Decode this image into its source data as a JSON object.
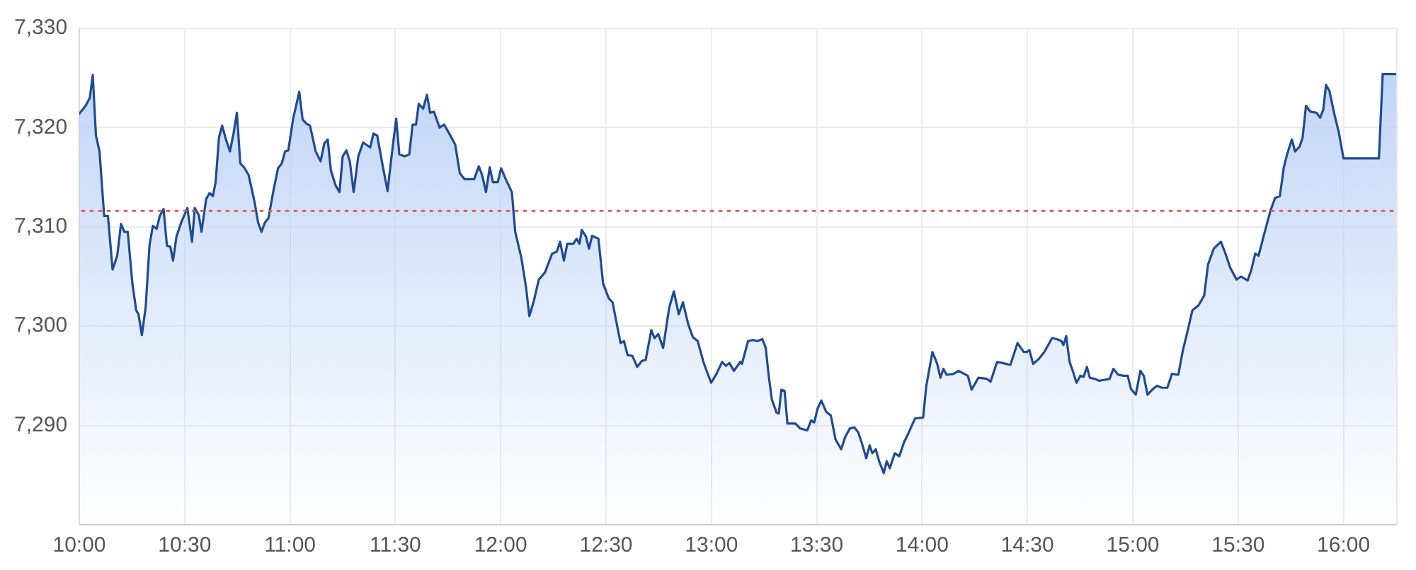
{
  "chart_data": {
    "type": "area",
    "color": "#1f4b93",
    "xlim": [
      10,
      16.25
    ],
    "xticks": [
      {
        "value": 10,
        "label": "10:00"
      },
      {
        "value": 10.5,
        "label": "10:30"
      },
      {
        "value": 11,
        "label": "11:00"
      },
      {
        "value": 11.5,
        "label": "11:30"
      },
      {
        "value": 12,
        "label": "12:00"
      },
      {
        "value": 12.5,
        "label": "12:30"
      },
      {
        "value": 13,
        "label": "13:00"
      },
      {
        "value": 13.5,
        "label": "13:30"
      },
      {
        "value": 14,
        "label": "14:00"
      },
      {
        "value": 14.5,
        "label": "14:30"
      },
      {
        "value": 15,
        "label": "15:00"
      },
      {
        "value": 15.5,
        "label": "15:30"
      },
      {
        "value": 16,
        "label": "16:00"
      }
    ],
    "ylim": [
      7280,
      7330
    ],
    "yticks": [
      {
        "value": 7290,
        "label": "7,290"
      },
      {
        "value": 7300,
        "label": "7,300"
      },
      {
        "value": 7310,
        "label": "7,310"
      },
      {
        "value": 7320,
        "label": "7,320"
      },
      {
        "value": 7330,
        "label": "7,330"
      }
    ],
    "grid": true,
    "ref_lines": [
      {
        "axis": "y",
        "value": 7311.6,
        "color": "#e05a5a",
        "line_style": "dotted"
      }
    ],
    "x": [
      10.0,
      10.03,
      10.05,
      10.064,
      10.079,
      10.096,
      10.118,
      10.136,
      10.158,
      10.18,
      10.198,
      10.214,
      10.23,
      10.252,
      10.27,
      10.281,
      10.297,
      10.315,
      10.333,
      10.349,
      10.367,
      10.382,
      10.4,
      10.416,
      10.432,
      10.445,
      10.461,
      10.483,
      10.513,
      10.535,
      10.548,
      10.567,
      10.58,
      10.602,
      10.618,
      10.634,
      10.647,
      10.663,
      10.678,
      10.696,
      10.715,
      10.732,
      10.748,
      10.764,
      10.782,
      10.804,
      10.831,
      10.849,
      10.865,
      10.88,
      10.898,
      10.92,
      10.943,
      10.961,
      10.977,
      10.992,
      11.015,
      11.044,
      11.06,
      11.078,
      11.095,
      11.122,
      11.145,
      11.163,
      11.179,
      11.194,
      11.216,
      11.235,
      11.25,
      11.268,
      11.284,
      11.302,
      11.324,
      11.347,
      11.381,
      11.396,
      11.414,
      11.436,
      11.463,
      11.482,
      11.504,
      11.519,
      11.544,
      11.566,
      11.582,
      11.598,
      11.611,
      11.632,
      11.65,
      11.665,
      11.683,
      11.71,
      11.732,
      11.761,
      11.784,
      11.806,
      11.829,
      11.874,
      11.896,
      11.912,
      11.93,
      11.948,
      11.963,
      11.986,
      12.002,
      12.024,
      12.053,
      12.069,
      12.098,
      12.121,
      12.136,
      12.158,
      12.181,
      12.21,
      12.244,
      12.266,
      12.282,
      12.3,
      12.316,
      12.345,
      12.36,
      12.374,
      12.385,
      12.405,
      12.419,
      12.434,
      12.464,
      12.486,
      12.513,
      12.531,
      12.553,
      12.569,
      12.585,
      12.602,
      12.625,
      12.648,
      12.67,
      12.688,
      12.715,
      12.73,
      12.748,
      12.771,
      12.8,
      12.822,
      12.845,
      12.865,
      12.89,
      12.912,
      12.935,
      12.962,
      12.979,
      12.999,
      13.024,
      13.051,
      13.069,
      13.085,
      13.107,
      13.137,
      13.145,
      13.174,
      13.197,
      13.219,
      13.242,
      13.258,
      13.271,
      13.287,
      13.309,
      13.32,
      13.332,
      13.347,
      13.361,
      13.399,
      13.421,
      13.455,
      13.473,
      13.488,
      13.504,
      13.522,
      13.544,
      13.567,
      13.589,
      13.616,
      13.634,
      13.657,
      13.679,
      13.697,
      13.713,
      13.735,
      13.751,
      13.764,
      13.78,
      13.796,
      13.818,
      13.832,
      13.847,
      13.87,
      13.892,
      13.914,
      13.937,
      13.966,
      14.005,
      14.02,
      14.049,
      14.072,
      14.087,
      14.101,
      14.116,
      14.15,
      14.173,
      14.217,
      14.235,
      14.267,
      14.307,
      14.325,
      14.356,
      14.379,
      14.419,
      14.453,
      14.482,
      14.498,
      14.509,
      14.527,
      14.554,
      14.58,
      14.617,
      14.639,
      14.661,
      14.671,
      14.684,
      14.7,
      14.715,
      14.733,
      14.751,
      14.767,
      14.782,
      14.796,
      14.819,
      14.841,
      14.868,
      14.89,
      14.908,
      14.931,
      14.957,
      14.976,
      14.991,
      15.014,
      15.036,
      15.052,
      15.07,
      15.092,
      15.115,
      15.137,
      15.164,
      15.186,
      15.216,
      15.238,
      15.26,
      15.283,
      15.312,
      15.339,
      15.357,
      15.384,
      15.418,
      15.44,
      15.462,
      15.492,
      15.514,
      15.545,
      15.563,
      15.581,
      15.597,
      15.62,
      15.653,
      15.675,
      15.698,
      15.716,
      15.732,
      15.755,
      15.77,
      15.792,
      15.806,
      15.822,
      15.843,
      15.872,
      15.889,
      15.904,
      15.917,
      15.933,
      15.956,
      15.978,
      16.0,
      16.168,
      16.186,
      16.25
    ],
    "values": [
      7321.4,
      7322.2,
      7323.0,
      7325.3,
      7319.2,
      7317.6,
      7311.1,
      7311.1,
      7305.7,
      7307.1,
      7310.3,
      7309.5,
      7309.5,
      7304.3,
      7301.6,
      7301.2,
      7299.1,
      7301.9,
      7308.1,
      7310.1,
      7309.8,
      7311.1,
      7311.8,
      7308.1,
      7308.0,
      7306.6,
      7309.0,
      7310.4,
      7311.9,
      7308.5,
      7311.9,
      7311.2,
      7309.5,
      7312.8,
      7313.4,
      7313.1,
      7314.5,
      7319.0,
      7320.2,
      7318.8,
      7317.6,
      7319.4,
      7321.5,
      7316.4,
      7316.0,
      7315.2,
      7312.6,
      7310.4,
      7309.5,
      7310.4,
      7310.9,
      7313.5,
      7315.9,
      7316.4,
      7317.6,
      7317.7,
      7320.9,
      7323.6,
      7320.8,
      7320.4,
      7320.2,
      7317.6,
      7316.6,
      7318.4,
      7318.8,
      7315.7,
      7314.2,
      7313.5,
      7317.1,
      7317.7,
      7316.6,
      7313.5,
      7317.1,
      7318.5,
      7318.0,
      7319.4,
      7319.2,
      7316.6,
      7313.6,
      7317.1,
      7320.9,
      7317.3,
      7317.1,
      7317.3,
      7320.3,
      7320.3,
      7322.4,
      7321.9,
      7323.3,
      7321.5,
      7321.6,
      7320.0,
      7320.3,
      7319.2,
      7318.3,
      7315.4,
      7314.8,
      7314.8,
      7316.1,
      7315.2,
      7313.5,
      7316.0,
      7314.5,
      7314.5,
      7315.9,
      7314.8,
      7313.5,
      7309.5,
      7306.9,
      7303.8,
      7301.0,
      7302.6,
      7304.7,
      7305.4,
      7307.3,
      7307.5,
      7308.5,
      7306.6,
      7308.3,
      7308.3,
      7308.8,
      7308.3,
      7309.7,
      7309.0,
      7307.8,
      7309.1,
      7308.8,
      7304.3,
      7302.8,
      7302.4,
      7300.0,
      7298.3,
      7298.5,
      7297.1,
      7297.0,
      7295.9,
      7296.5,
      7296.6,
      7299.6,
      7298.8,
      7299.2,
      7297.8,
      7301.9,
      7303.5,
      7301.2,
      7302.4,
      7300.2,
      7298.9,
      7298.5,
      7296.4,
      7295.4,
      7294.3,
      7295.2,
      7296.4,
      7296.0,
      7296.3,
      7295.5,
      7296.4,
      7296.2,
      7298.5,
      7298.6,
      7298.5,
      7298.7,
      7297.8,
      7295.2,
      7292.6,
      7291.3,
      7291.2,
      7293.6,
      7293.5,
      7290.2,
      7290.2,
      7289.7,
      7289.5,
      7290.5,
      7290.3,
      7291.7,
      7292.5,
      7291.4,
      7291.0,
      7288.6,
      7287.6,
      7288.8,
      7289.7,
      7289.8,
      7289.3,
      7288.3,
      7286.7,
      7288.0,
      7287.2,
      7287.6,
      7286.4,
      7285.2,
      7286.4,
      7285.7,
      7287.2,
      7286.9,
      7288.3,
      7289.3,
      7290.7,
      7290.8,
      7294.0,
      7297.4,
      7296.2,
      7294.8,
      7295.7,
      7295.1,
      7295.2,
      7295.5,
      7295.0,
      7293.6,
      7294.8,
      7294.7,
      7294.4,
      7296.4,
      7296.3,
      7296.1,
      7298.3,
      7297.4,
      7297.4,
      7297.6,
      7296.2,
      7296.7,
      7297.4,
      7298.8,
      7298.7,
      7298.5,
      7298.1,
      7299.0,
      7296.4,
      7295.5,
      7294.3,
      7295.0,
      7294.9,
      7295.9,
      7294.8,
      7294.7,
      7294.5,
      7294.6,
      7294.7,
      7295.7,
      7295.1,
      7295.0,
      7295.0,
      7293.7,
      7293.1,
      7295.5,
      7295.0,
      7293.1,
      7293.6,
      7294.0,
      7293.8,
      7293.8,
      7295.2,
      7295.1,
      7297.6,
      7299.5,
      7301.6,
      7302.1,
      7303.1,
      7306.2,
      7307.8,
      7308.5,
      7307.3,
      7305.9,
      7304.7,
      7305.0,
      7304.6,
      7305.7,
      7307.3,
      7307.1,
      7309.0,
      7311.6,
      7312.9,
      7313.1,
      7315.9,
      7317.3,
      7318.8,
      7317.6,
      7318.1,
      7319.0,
      7322.2,
      7321.6,
      7321.5,
      7321.0,
      7321.8,
      7324.3,
      7323.7,
      7321.4,
      7319.5,
      7316.9,
      7316.9,
      7325.4,
      7325.4
    ]
  }
}
